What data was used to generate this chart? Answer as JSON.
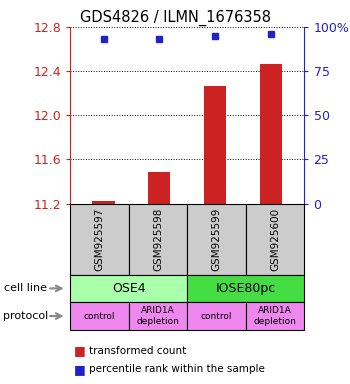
{
  "title": "GDS4826 / ILMN_1676358",
  "samples": [
    "GSM925597",
    "GSM925598",
    "GSM925599",
    "GSM925600"
  ],
  "bar_values": [
    11.22,
    11.49,
    12.26,
    12.46
  ],
  "bar_baseline": 11.2,
  "dot_values": [
    93,
    93,
    95,
    96
  ],
  "ylim": [
    11.2,
    12.8
  ],
  "y2lim": [
    0,
    100
  ],
  "yticks": [
    11.2,
    11.6,
    12.0,
    12.4,
    12.8
  ],
  "y2ticks": [
    0,
    25,
    50,
    75,
    100
  ],
  "y2ticklabels": [
    "0",
    "25",
    "50",
    "75",
    "100%"
  ],
  "bar_color": "#cc2222",
  "dot_color": "#2222cc",
  "cell_lines": [
    "OSE4",
    "IOSE80pc"
  ],
  "cell_line_spans": [
    [
      0,
      2
    ],
    [
      2,
      4
    ]
  ],
  "cell_line_colors": [
    "#aaffaa",
    "#44dd44"
  ],
  "protocols": [
    "control",
    "ARID1A\ndepletion",
    "control",
    "ARID1A\ndepletion"
  ],
  "protocol_color": "#ee88ee",
  "sample_box_color": "#cccccc",
  "legend_items": [
    {
      "color": "#cc2222",
      "label": "transformed count"
    },
    {
      "color": "#2222cc",
      "label": "percentile rank within the sample"
    }
  ],
  "cell_line_label": "cell line",
  "protocol_label": "protocol"
}
